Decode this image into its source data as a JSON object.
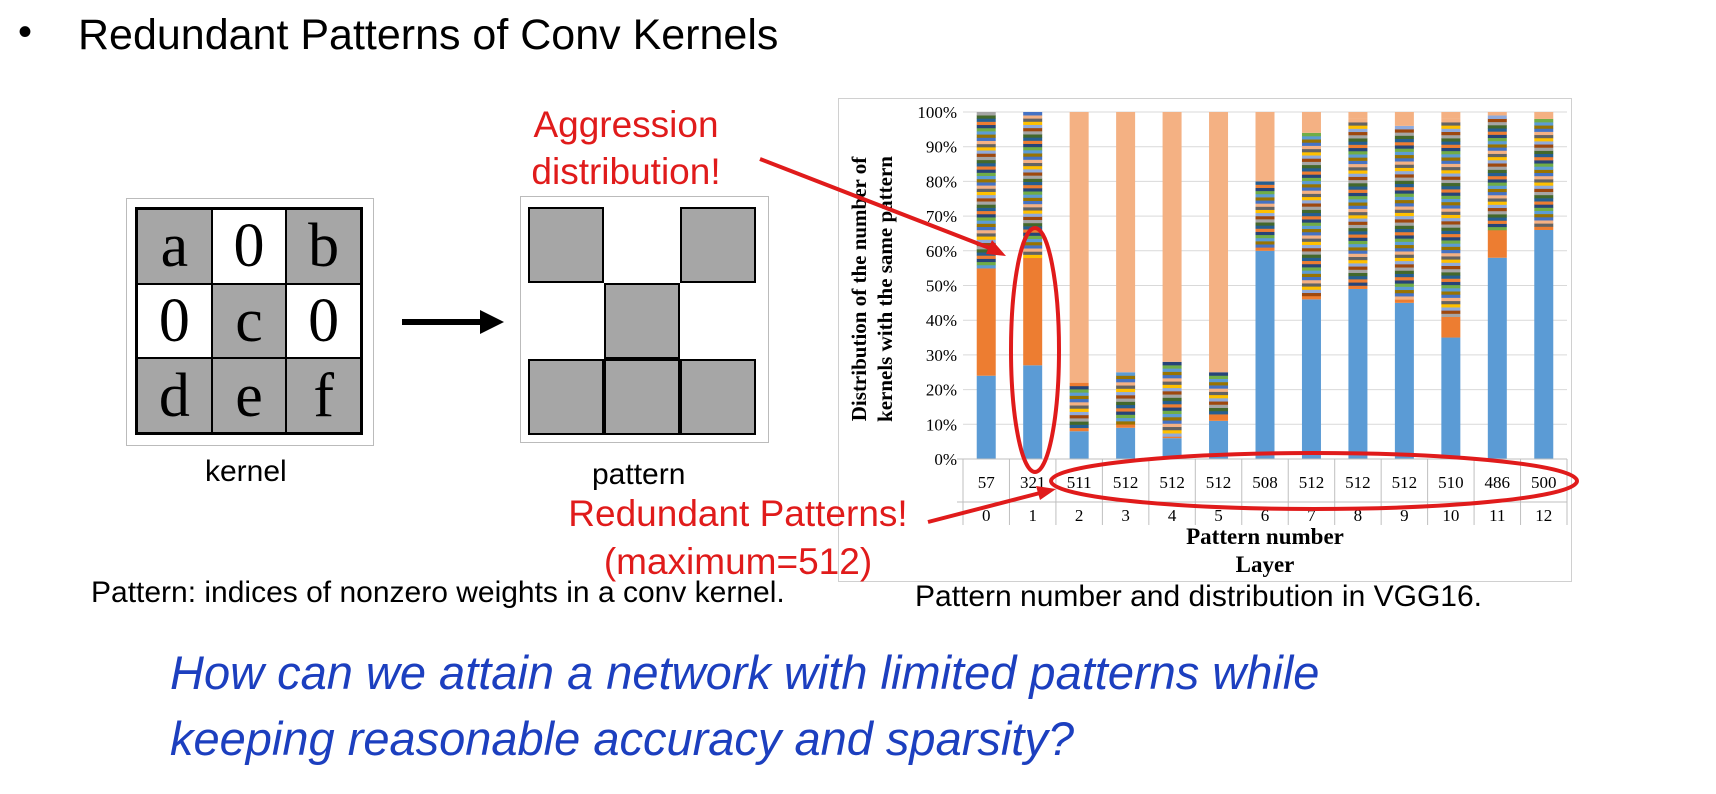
{
  "slide": {
    "bullet": "•",
    "title": "Redundant Patterns of Conv Kernels",
    "kernel_caption": "kernel",
    "pattern_caption": "pattern",
    "pattern_definition": "Pattern: indices of nonzero weights in a conv kernel.",
    "chart_caption": "Pattern number and distribution in VGG16.",
    "question_line1": "How can we attain a network with limited patterns while",
    "question_line2": "keeping reasonable accuracy and sparsity?"
  },
  "kernel": {
    "cells": [
      "a",
      "0",
      "b",
      "0",
      "c",
      "0",
      "d",
      "e",
      "f"
    ],
    "shaded": [
      true,
      false,
      true,
      false,
      true,
      false,
      true,
      true,
      true
    ]
  },
  "pattern": {
    "filled": [
      true,
      false,
      true,
      false,
      true,
      false,
      true,
      true,
      true
    ]
  },
  "annotations": {
    "aggression_line1": "Aggression",
    "aggression_line2": "distribution!",
    "redundant_line1": "Redundant Patterns!",
    "redundant_line2": "(maximum=512)",
    "color": "#e01b1b"
  },
  "chart_data": {
    "type": "bar",
    "stacked": true,
    "ylabel_line1": "Distribution  of the number  of",
    "ylabel_line2": "kernels with  the same pattern",
    "row_label_counts": "Pattern number",
    "xlabel": "Layer",
    "yticks": [
      "0%",
      "10%",
      "20%",
      "30%",
      "40%",
      "50%",
      "60%",
      "70%",
      "80%",
      "90%",
      "100%"
    ],
    "ylim": [
      0,
      100
    ],
    "categories": [
      "0",
      "1",
      "2",
      "3",
      "4",
      "5",
      "6",
      "7",
      "8",
      "9",
      "10",
      "11",
      "12"
    ],
    "pattern_numbers": [
      "57",
      "321",
      "511",
      "512",
      "512",
      "512",
      "508",
      "512",
      "512",
      "512",
      "510",
      "486",
      "500"
    ],
    "series": [
      {
        "values": [
          24,
          27,
          8,
          9,
          6,
          11,
          60,
          46,
          49,
          45,
          35,
          58,
          66
        ]
      },
      {
        "values": [
          31,
          31,
          1,
          1,
          0.5,
          1,
          1,
          1,
          1,
          1,
          6,
          8,
          1
        ]
      },
      {
        "values": [
          45,
          42,
          13,
          15,
          21.5,
          13,
          19,
          47,
          48,
          50,
          57,
          33,
          31
        ]
      },
      {
        "values": [
          0,
          0,
          78,
          75,
          72,
          75,
          20,
          6,
          2,
          4,
          2,
          1,
          2
        ]
      }
    ],
    "series_colors": [
      "#5b9bd5",
      "#ed7d31",
      "#multicolor",
      "#f4b183"
    ],
    "grid": true
  }
}
